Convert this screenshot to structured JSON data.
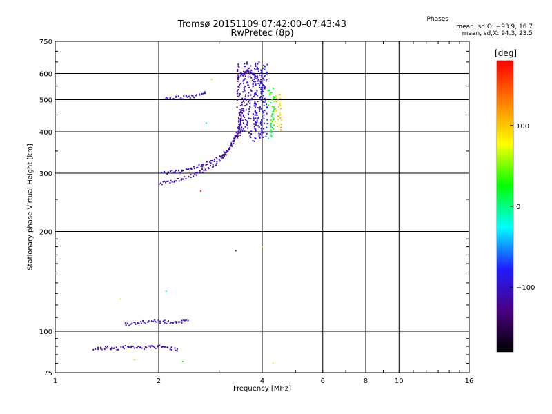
{
  "header": {
    "title_line1": "Tromsø 20151109 07:42:00–07:43:43",
    "title_line2": "RwPretec (8p)"
  },
  "stats": {
    "heading": "Phases",
    "o_line": "mean, sd,O: −93.9, 16.7",
    "x_line": "mean, sd,X:  94.3, 23.5"
  },
  "colorbar": {
    "unit": "deg",
    "ticks": [
      {
        "value": 100,
        "label": "100"
      },
      {
        "value": 0,
        "label": "0"
      },
      {
        "value": -100,
        "label": "−100"
      }
    ],
    "range": [
      -180,
      180
    ],
    "colors": [
      "#000000",
      "#4b0082",
      "#1e1eff",
      "#00ffff",
      "#00ff00",
      "#ffff00",
      "#ff8000",
      "#ff0000"
    ]
  },
  "chart_data": {
    "type": "scatter",
    "xlabel": "Frequency [MHz]",
    "ylabel": "Stationary phase Virtual Height [km]",
    "xscale": "log",
    "yscale": "log",
    "xlim": [
      1,
      16
    ],
    "ylim": [
      75,
      750
    ],
    "grid": true,
    "xticks": [
      {
        "value": 1,
        "label": "1"
      },
      {
        "value": 2,
        "label": "2"
      },
      {
        "value": 4,
        "label": "4"
      },
      {
        "value": 6,
        "label": "6"
      },
      {
        "value": 8,
        "label": "8"
      },
      {
        "value": 10,
        "label": "10"
      },
      {
        "value": 16,
        "label": "16"
      }
    ],
    "xgrid": [
      2,
      4,
      6,
      8,
      10
    ],
    "yticks": [
      {
        "value": 75,
        "label": "75"
      },
      {
        "value": 100,
        "label": "100"
      },
      {
        "value": 200,
        "label": "200"
      },
      {
        "value": 300,
        "label": "300"
      },
      {
        "value": 400,
        "label": "400"
      },
      {
        "value": 500,
        "label": "500"
      },
      {
        "value": 600,
        "label": "600"
      },
      {
        "value": 750,
        "label": "750"
      }
    ],
    "ygrid": [
      100,
      200,
      300,
      400,
      500,
      600
    ],
    "traces": [
      {
        "x": [
          1.3,
          1.4,
          1.55,
          1.7,
          1.85,
          2.0,
          2.15,
          2.3
        ],
        "y": [
          88,
          89,
          89,
          90,
          89,
          90,
          89,
          88
        ],
        "phase": -110
      },
      {
        "x": [
          1.6,
          1.75,
          1.9,
          2.05,
          2.2,
          2.45
        ],
        "y": [
          105,
          106,
          107,
          107,
          106,
          107
        ],
        "phase": -105
      },
      {
        "x": [
          2.0,
          2.15,
          2.3,
          2.45,
          2.65,
          2.9,
          3.15,
          3.35,
          3.5
        ],
        "y": [
          280,
          283,
          287,
          293,
          302,
          318,
          345,
          385,
          440
        ],
        "phase": -115
      },
      {
        "x": [
          2.05,
          2.3,
          2.55,
          2.8,
          3.05,
          3.25,
          3.4,
          3.5
        ],
        "y": [
          300,
          305,
          312,
          322,
          337,
          360,
          400,
          470
        ],
        "phase": -110
      },
      {
        "x": [
          3.4,
          3.5,
          3.6,
          3.7,
          3.8,
          3.9,
          4.0,
          4.1
        ],
        "y": [
          580,
          600,
          610,
          600,
          590,
          580,
          560,
          540
        ],
        "phase": -105
      },
      {
        "x": [
          2.1,
          2.3,
          2.55,
          2.75
        ],
        "y": [
          503,
          507,
          512,
          530
        ],
        "phase": -95
      }
    ],
    "vertical_traces": [
      {
        "x": 3.45,
        "y_range": [
          380,
          640
        ],
        "phase": -115
      },
      {
        "x": 3.6,
        "y_range": [
          400,
          650
        ],
        "phase": -110
      },
      {
        "x": 3.75,
        "y_range": [
          370,
          640
        ],
        "phase": -105
      },
      {
        "x": 3.9,
        "y_range": [
          380,
          650
        ],
        "phase": -95
      },
      {
        "x": 4.05,
        "y_range": [
          380,
          640
        ],
        "phase": -85
      },
      {
        "x": 4.25,
        "y_range": [
          380,
          540
        ],
        "phase": 20
      },
      {
        "x": 4.45,
        "y_range": [
          400,
          520
        ],
        "phase": 95
      }
    ],
    "outliers": [
      {
        "x": 2.65,
        "y": 265,
        "phase": 170
      },
      {
        "x": 3.35,
        "y": 175,
        "phase": -140
      },
      {
        "x": 4.0,
        "y": 180,
        "phase": 100
      },
      {
        "x": 4.3,
        "y": 80,
        "phase": 90
      },
      {
        "x": 1.55,
        "y": 125,
        "phase": 95
      },
      {
        "x": 2.1,
        "y": 132,
        "phase": -20
      },
      {
        "x": 1.7,
        "y": 82,
        "phase": 100
      },
      {
        "x": 2.35,
        "y": 81,
        "phase": 30
      },
      {
        "x": 2.85,
        "y": 575,
        "phase": 95
      },
      {
        "x": 2.75,
        "y": 425,
        "phase": -20
      }
    ]
  }
}
